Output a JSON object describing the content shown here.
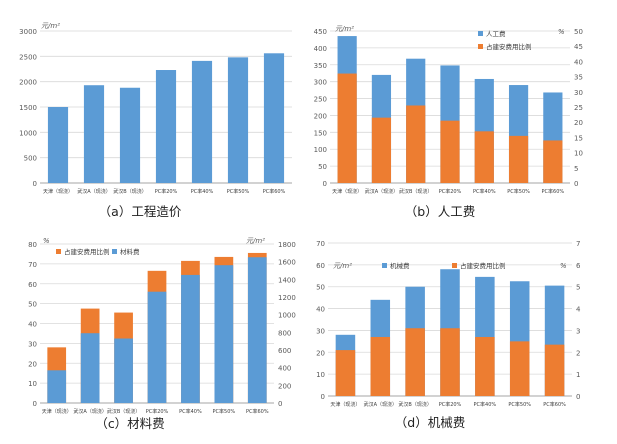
{
  "colors": {
    "blue": "#5B9BD5",
    "orange": "#ED7D31",
    "grid": "#D9D9D9",
    "axis": "#A6A6A6",
    "text": "#595959"
  },
  "chart_data": [
    {
      "type": "bar",
      "caption": "（a）工程造价",
      "ylabel": "元/m²",
      "categories": [
        "天津（现浇）",
        "武汉A（现浇）",
        "武汉B（现浇）",
        "PC率20%",
        "PC率40%",
        "PC率50%",
        "PC率60%"
      ],
      "ylim": [
        0,
        3000
      ],
      "yticks": [
        0,
        500,
        1000,
        1500,
        2000,
        2500,
        3000
      ],
      "series": [
        {
          "values": [
            1500,
            1930,
            1880,
            2230,
            2410,
            2480,
            2560
          ],
          "color": "#5B9BD5"
        }
      ],
      "grid": true
    },
    {
      "type": "bar",
      "caption": "（b）人工费",
      "ylabel": "元/m²",
      "y2label": "%",
      "categories": [
        "天津（现浇）",
        "武汉A（现浇）",
        "武汉B（现浇）",
        "PC率20%",
        "PC率40%",
        "PC率50%",
        "PC率60%"
      ],
      "ylim": [
        0,
        450
      ],
      "yticks": [
        0,
        50,
        100,
        150,
        200,
        250,
        300,
        350,
        400,
        450
      ],
      "y2lim": [
        0,
        50
      ],
      "y2ticks": [
        0,
        5,
        10,
        15,
        20,
        25,
        30,
        35,
        40,
        45,
        50
      ],
      "legend_position": "top-center",
      "series": [
        {
          "name": "人工费",
          "axis": "left",
          "values": [
            435,
            320,
            368,
            348,
            308,
            290,
            268
          ],
          "color": "#5B9BD5"
        },
        {
          "name": "占建安费用比例",
          "axis": "right",
          "values": [
            36,
            21.5,
            25.5,
            20.5,
            17,
            15.5,
            14
          ],
          "color": "#ED7D31"
        }
      ],
      "grid": true
    },
    {
      "type": "bar",
      "caption": "（c）材料费",
      "ylabel": "%",
      "y2label": "元/m²",
      "categories": [
        "天津（现浇）",
        "武汉A（现浇）",
        "武汉B（现浇）",
        "PC率20%",
        "PC率40%",
        "PC率50%",
        "PC率60%"
      ],
      "ylim": [
        0,
        80
      ],
      "yticks": [
        0,
        10,
        20,
        30,
        40,
        50,
        60,
        70,
        80
      ],
      "y2lim": [
        0,
        1800
      ],
      "y2ticks": [
        0,
        200,
        400,
        600,
        800,
        1000,
        1200,
        1400,
        1600,
        1800
      ],
      "legend_position": "top-left",
      "series": [
        {
          "name": "占建安费用比例",
          "axis": "left",
          "values": [
            28,
            47.5,
            45.5,
            66.5,
            71.5,
            73.5,
            75.5
          ],
          "color": "#ED7D31"
        },
        {
          "name": "材料费",
          "axis": "right",
          "values": [
            370,
            790,
            730,
            1260,
            1450,
            1560,
            1650
          ],
          "color": "#5B9BD5"
        }
      ],
      "grid": true
    },
    {
      "type": "bar",
      "caption": "（d）机械费",
      "ylabel": "元/m²",
      "y2label": "%",
      "categories": [
        "天津（现浇）",
        "武汉A（现浇）",
        "武汉B（现浇）",
        "PC率20%",
        "PC率40%",
        "PC率50%",
        "PC率60%"
      ],
      "ylim": [
        0,
        70
      ],
      "yticks": [
        0,
        10,
        20,
        30,
        40,
        50,
        60,
        70
      ],
      "y2lim": [
        0,
        7
      ],
      "y2ticks": [
        0,
        1,
        2,
        3,
        4,
        5,
        6,
        7
      ],
      "legend_position": "top-center",
      "series": [
        {
          "name": "机械费",
          "axis": "left",
          "values": [
            28,
            44,
            50,
            58,
            54.5,
            52.5,
            50.5
          ],
          "color": "#5B9BD5"
        },
        {
          "name": "占建安费用比例",
          "axis": "right",
          "values": [
            2.1,
            2.7,
            3.1,
            3.1,
            2.7,
            2.5,
            2.35
          ],
          "color": "#ED7D31"
        }
      ],
      "grid": true
    }
  ]
}
